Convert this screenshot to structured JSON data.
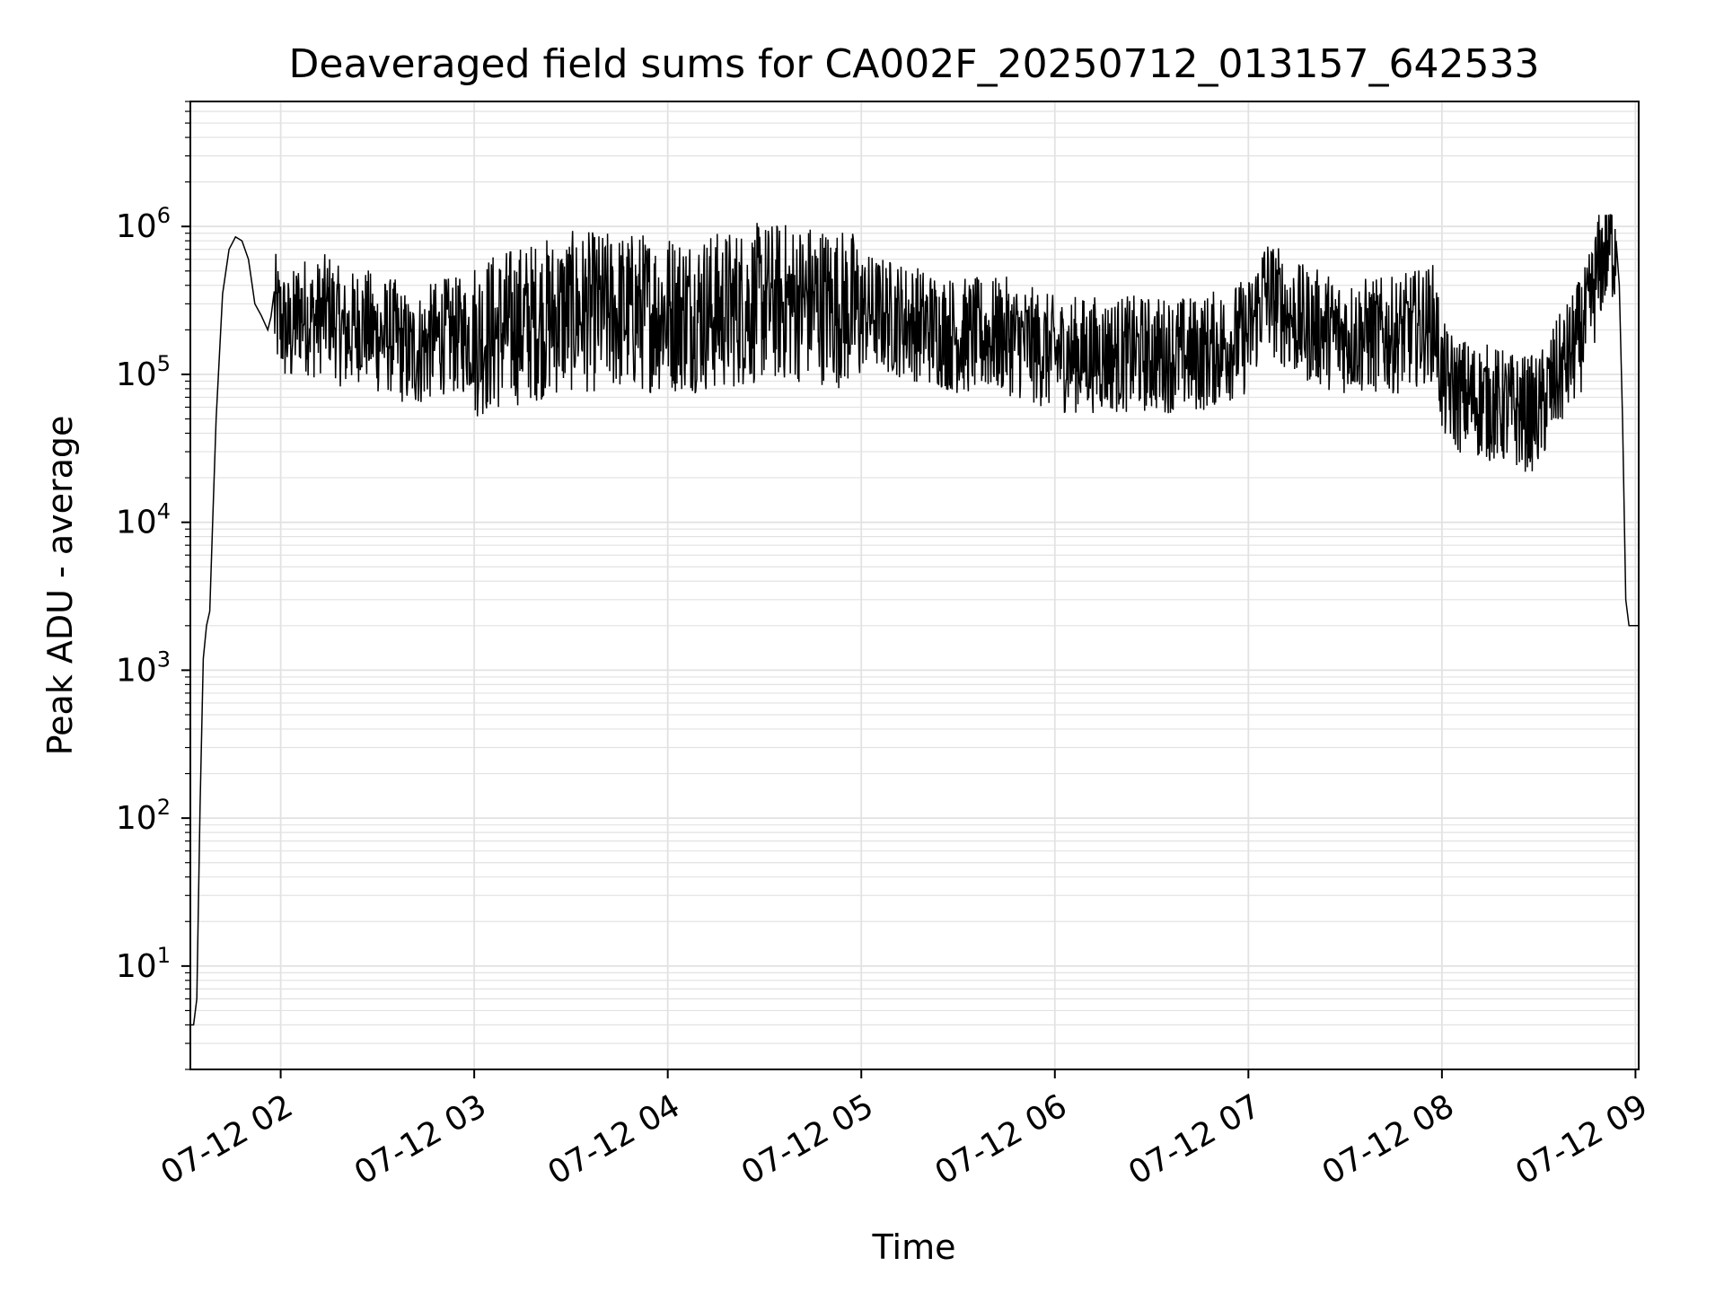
{
  "chart_data": {
    "type": "line",
    "title": "Deaveraged field sums for CA002F_20250712_013157_642533",
    "xlabel": "Time",
    "ylabel": "Peak ADU - average",
    "yscale": "log",
    "xlim": [
      "07-12 01:32",
      "07-12 09:01"
    ],
    "ylim": [
      2,
      7000000
    ],
    "grid": true,
    "series_color": "#000000",
    "x_ticks": [
      "07-12 02",
      "07-12 03",
      "07-12 04",
      "07-12 05",
      "07-12 06",
      "07-12 07",
      "07-12 08",
      "07-12 09"
    ],
    "y_ticks": [
      {
        "base": "10",
        "exp": "1",
        "value": 10
      },
      {
        "base": "10",
        "exp": "2",
        "value": 100
      },
      {
        "base": "10",
        "exp": "3",
        "value": 1000
      },
      {
        "base": "10",
        "exp": "4",
        "value": 10000
      },
      {
        "base": "10",
        "exp": "5",
        "value": 100000
      },
      {
        "base": "10",
        "exp": "6",
        "value": 1000000
      }
    ],
    "series": [
      {
        "x": [
          "07-12 01:32",
          "07-12 01:33",
          "07-12 01:34",
          "07-12 01:35",
          "07-12 01:36",
          "07-12 01:37",
          "07-12 01:38",
          "07-12 01:40",
          "07-12 01:42",
          "07-12 01:44",
          "07-12 01:46",
          "07-12 01:48",
          "07-12 01:50",
          "07-12 01:52",
          "07-12 01:54",
          "07-12 01:56",
          "07-12 01:58",
          "07-12 02:00",
          "07-12 02:03",
          "07-12 02:06",
          "07-12 02:10",
          "07-12 02:15",
          "07-12 02:20",
          "07-12 02:25",
          "07-12 02:30",
          "07-12 02:35",
          "07-12 02:40",
          "07-12 02:50",
          "07-12 03:00",
          "07-12 03:15",
          "07-12 03:30",
          "07-12 03:45",
          "07-12 04:00",
          "07-12 04:15",
          "07-12 04:30",
          "07-12 04:45",
          "07-12 05:00",
          "07-12 05:15",
          "07-12 05:30",
          "07-12 05:45",
          "07-12 06:00",
          "07-12 06:15",
          "07-12 06:30",
          "07-12 06:45",
          "07-12 07:00",
          "07-12 07:05",
          "07-12 07:15",
          "07-12 07:30",
          "07-12 07:45",
          "07-12 07:58",
          "07-12 08:00",
          "07-12 08:05",
          "07-12 08:15",
          "07-12 08:25",
          "07-12 08:30",
          "07-12 08:35",
          "07-12 08:40",
          "07-12 08:45",
          "07-12 08:48",
          "07-12 08:50",
          "07-12 08:52",
          "07-12 08:54",
          "07-12 08:55",
          "07-12 08:56",
          "07-12 08:57",
          "07-12 08:58",
          "07-12 08:59",
          "07-12 09:00",
          "07-12 09:01"
        ],
        "y": [
          4,
          4,
          6,
          120,
          1200,
          2000,
          2500,
          50000,
          350000,
          700000,
          850000,
          800000,
          600000,
          300000,
          250000,
          200000,
          300000,
          250000,
          200000,
          300000,
          250000,
          300000,
          200000,
          250000,
          200000,
          200000,
          150000,
          200000,
          200000,
          250000,
          300000,
          300000,
          300000,
          300000,
          350000,
          350000,
          300000,
          250000,
          200000,
          200000,
          150000,
          150000,
          150000,
          150000,
          200000,
          400000,
          250000,
          200000,
          200000,
          250000,
          100000,
          80000,
          70000,
          60000,
          60000,
          100000,
          150000,
          250000,
          500000,
          700000,
          850000,
          800000,
          400000,
          50000,
          3000,
          2000,
          2000,
          2000,
          2000
        ]
      }
    ]
  }
}
